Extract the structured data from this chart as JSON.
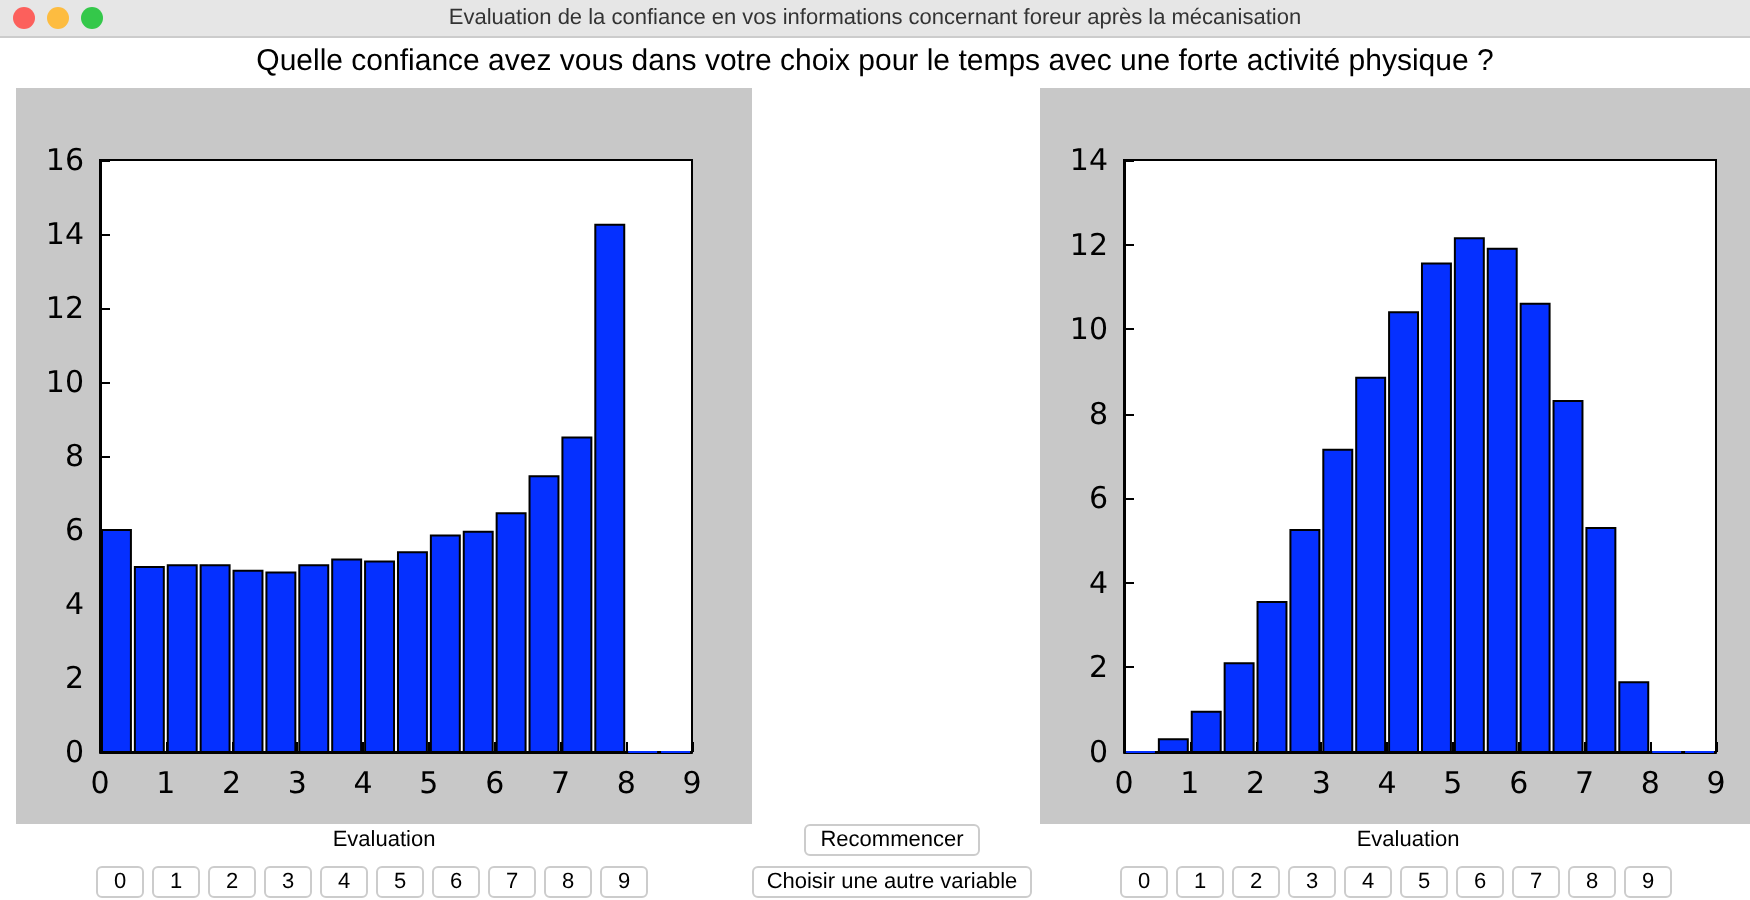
{
  "chart_data": [
    {
      "type": "histogram",
      "title": "Quelle confiance avez vous dans votre choix pour le temps avec une forte activité physique ?",
      "subtitle": "Evaluation de la confiance en vos informations concernant foreur   après la mécanisation",
      "xlabel": "Evaluation",
      "annotations": [
        "0",
        "1",
        "2",
        "3",
        "4",
        "5",
        "6",
        "7",
        "8",
        "9",
        "Recommencer",
        "Choisir une autre variable"
      ],
      "bins": [
        0,
        0.5,
        1,
        1.5,
        2,
        2.5,
        3,
        3.5,
        4,
        4.5,
        5,
        5.5,
        6,
        6.5,
        7,
        7.5,
        8,
        8.5,
        9
      ],
      "values": [
        6.0,
        5.0,
        5.05,
        5.05,
        4.9,
        4.85,
        5.05,
        5.2,
        5.15,
        5.4,
        5.85,
        5.95,
        6.45,
        7.45,
        8.5,
        14.25,
        0,
        0
      ],
      "color": "#0530ff",
      "xlim": [
        0,
        9
      ],
      "xticks": [
        0,
        1,
        2,
        3,
        4,
        5,
        6,
        7,
        8,
        9
      ],
      "ylim": [
        0,
        16
      ],
      "yticks": [
        0,
        2,
        4,
        6,
        8,
        10,
        12,
        14,
        16
      ]
    },
    {
      "type": "histogram",
      "xlabel": "Evaluation",
      "annotations": [
        "0",
        "1",
        "2",
        "3",
        "4",
        "5",
        "6",
        "7",
        "8",
        "9"
      ],
      "bins": [
        0,
        0.5,
        1,
        1.5,
        2,
        2.5,
        3,
        3.5,
        4,
        4.5,
        5,
        5.5,
        6,
        6.5,
        7,
        7.5,
        8,
        8.5,
        9
      ],
      "values": [
        0,
        0.3,
        0.95,
        2.1,
        3.55,
        5.25,
        7.15,
        8.85,
        10.4,
        11.55,
        12.15,
        11.9,
        10.6,
        8.3,
        5.3,
        1.65,
        0,
        0
      ],
      "color": "#0530ff",
      "xlim": [
        0,
        9
      ],
      "xticks": [
        0,
        1,
        2,
        3,
        4,
        5,
        6,
        7,
        8,
        9
      ],
      "ylim": [
        0,
        14
      ],
      "yticks": [
        0,
        2,
        4,
        6,
        8,
        10,
        12,
        14
      ]
    }
  ]
}
